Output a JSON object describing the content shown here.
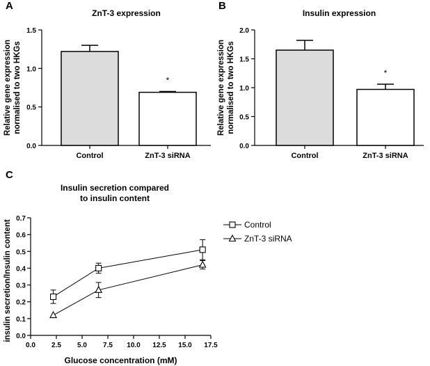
{
  "chart_data": [
    {
      "panel": "A",
      "type": "bar",
      "title": "ZnT-3 expression",
      "xlabel": "",
      "ylabel": [
        "Relative gene expression",
        "normalised to two HKGs"
      ],
      "categories": [
        "Control",
        "ZnT-3 siRNA"
      ],
      "values": [
        1.22,
        0.69
      ],
      "errors": [
        0.08,
        0.01
      ],
      "significance": [
        "",
        "*"
      ],
      "fills": [
        "#dcdcdc",
        "#ffffff"
      ],
      "ylim": [
        0,
        1.5
      ],
      "yticks": [
        0,
        0.5,
        1.0,
        1.5
      ],
      "ytick_labels": [
        "0.0",
        "0.5",
        "1.0",
        "1.5"
      ]
    },
    {
      "panel": "B",
      "type": "bar",
      "title": "Insulin expression",
      "xlabel": "",
      "ylabel": [
        "Relative gene expression",
        "normalised to two HKGs"
      ],
      "categories": [
        "Control",
        "ZnT-3 siRNA"
      ],
      "values": [
        1.65,
        0.97
      ],
      "errors": [
        0.17,
        0.09
      ],
      "significance": [
        "",
        "*"
      ],
      "fills": [
        "#dcdcdc",
        "#ffffff"
      ],
      "ylim": [
        0,
        2.0
      ],
      "yticks": [
        0,
        0.5,
        1.0,
        1.5,
        2.0
      ],
      "ytick_labels": [
        "0.0",
        "0.5",
        "1.0",
        "1.5",
        "2.0"
      ]
    },
    {
      "panel": "C",
      "type": "line",
      "title": [
        "Insulin secretion compared",
        "to insulin content"
      ],
      "xlabel": "Glucose concentration (mM)",
      "ylabel": "insulin secretion/Insulin content",
      "x": [
        2.2,
        6.6,
        16.7
      ],
      "series": [
        {
          "name": "Control",
          "marker": "square",
          "values": [
            0.23,
            0.4,
            0.51
          ],
          "errors": [
            0.04,
            0.03,
            0.06
          ]
        },
        {
          "name": "ZnT-3 siRNA",
          "marker": "triangle",
          "values": [
            0.12,
            0.27,
            0.42
          ],
          "errors": [
            0.0,
            0.045,
            0.025
          ]
        }
      ],
      "xlim": [
        0,
        17.5
      ],
      "xticks": [
        0,
        2.5,
        5,
        7.5,
        10,
        12.5,
        15,
        17.5
      ],
      "xtick_labels": [
        "0.0",
        "2.5",
        "5.0",
        "7.5",
        "10.0",
        "12.5",
        "15.0",
        "17.5"
      ],
      "ylim": [
        0,
        0.7
      ],
      "yticks": [
        0,
        0.1,
        0.2,
        0.3,
        0.4,
        0.5,
        0.6,
        0.7
      ],
      "ytick_labels": [
        "0.0",
        "0.1",
        "0.2",
        "0.3",
        "0.4",
        "0.5",
        "0.6",
        "0.7"
      ],
      "legend_position": "right"
    }
  ]
}
